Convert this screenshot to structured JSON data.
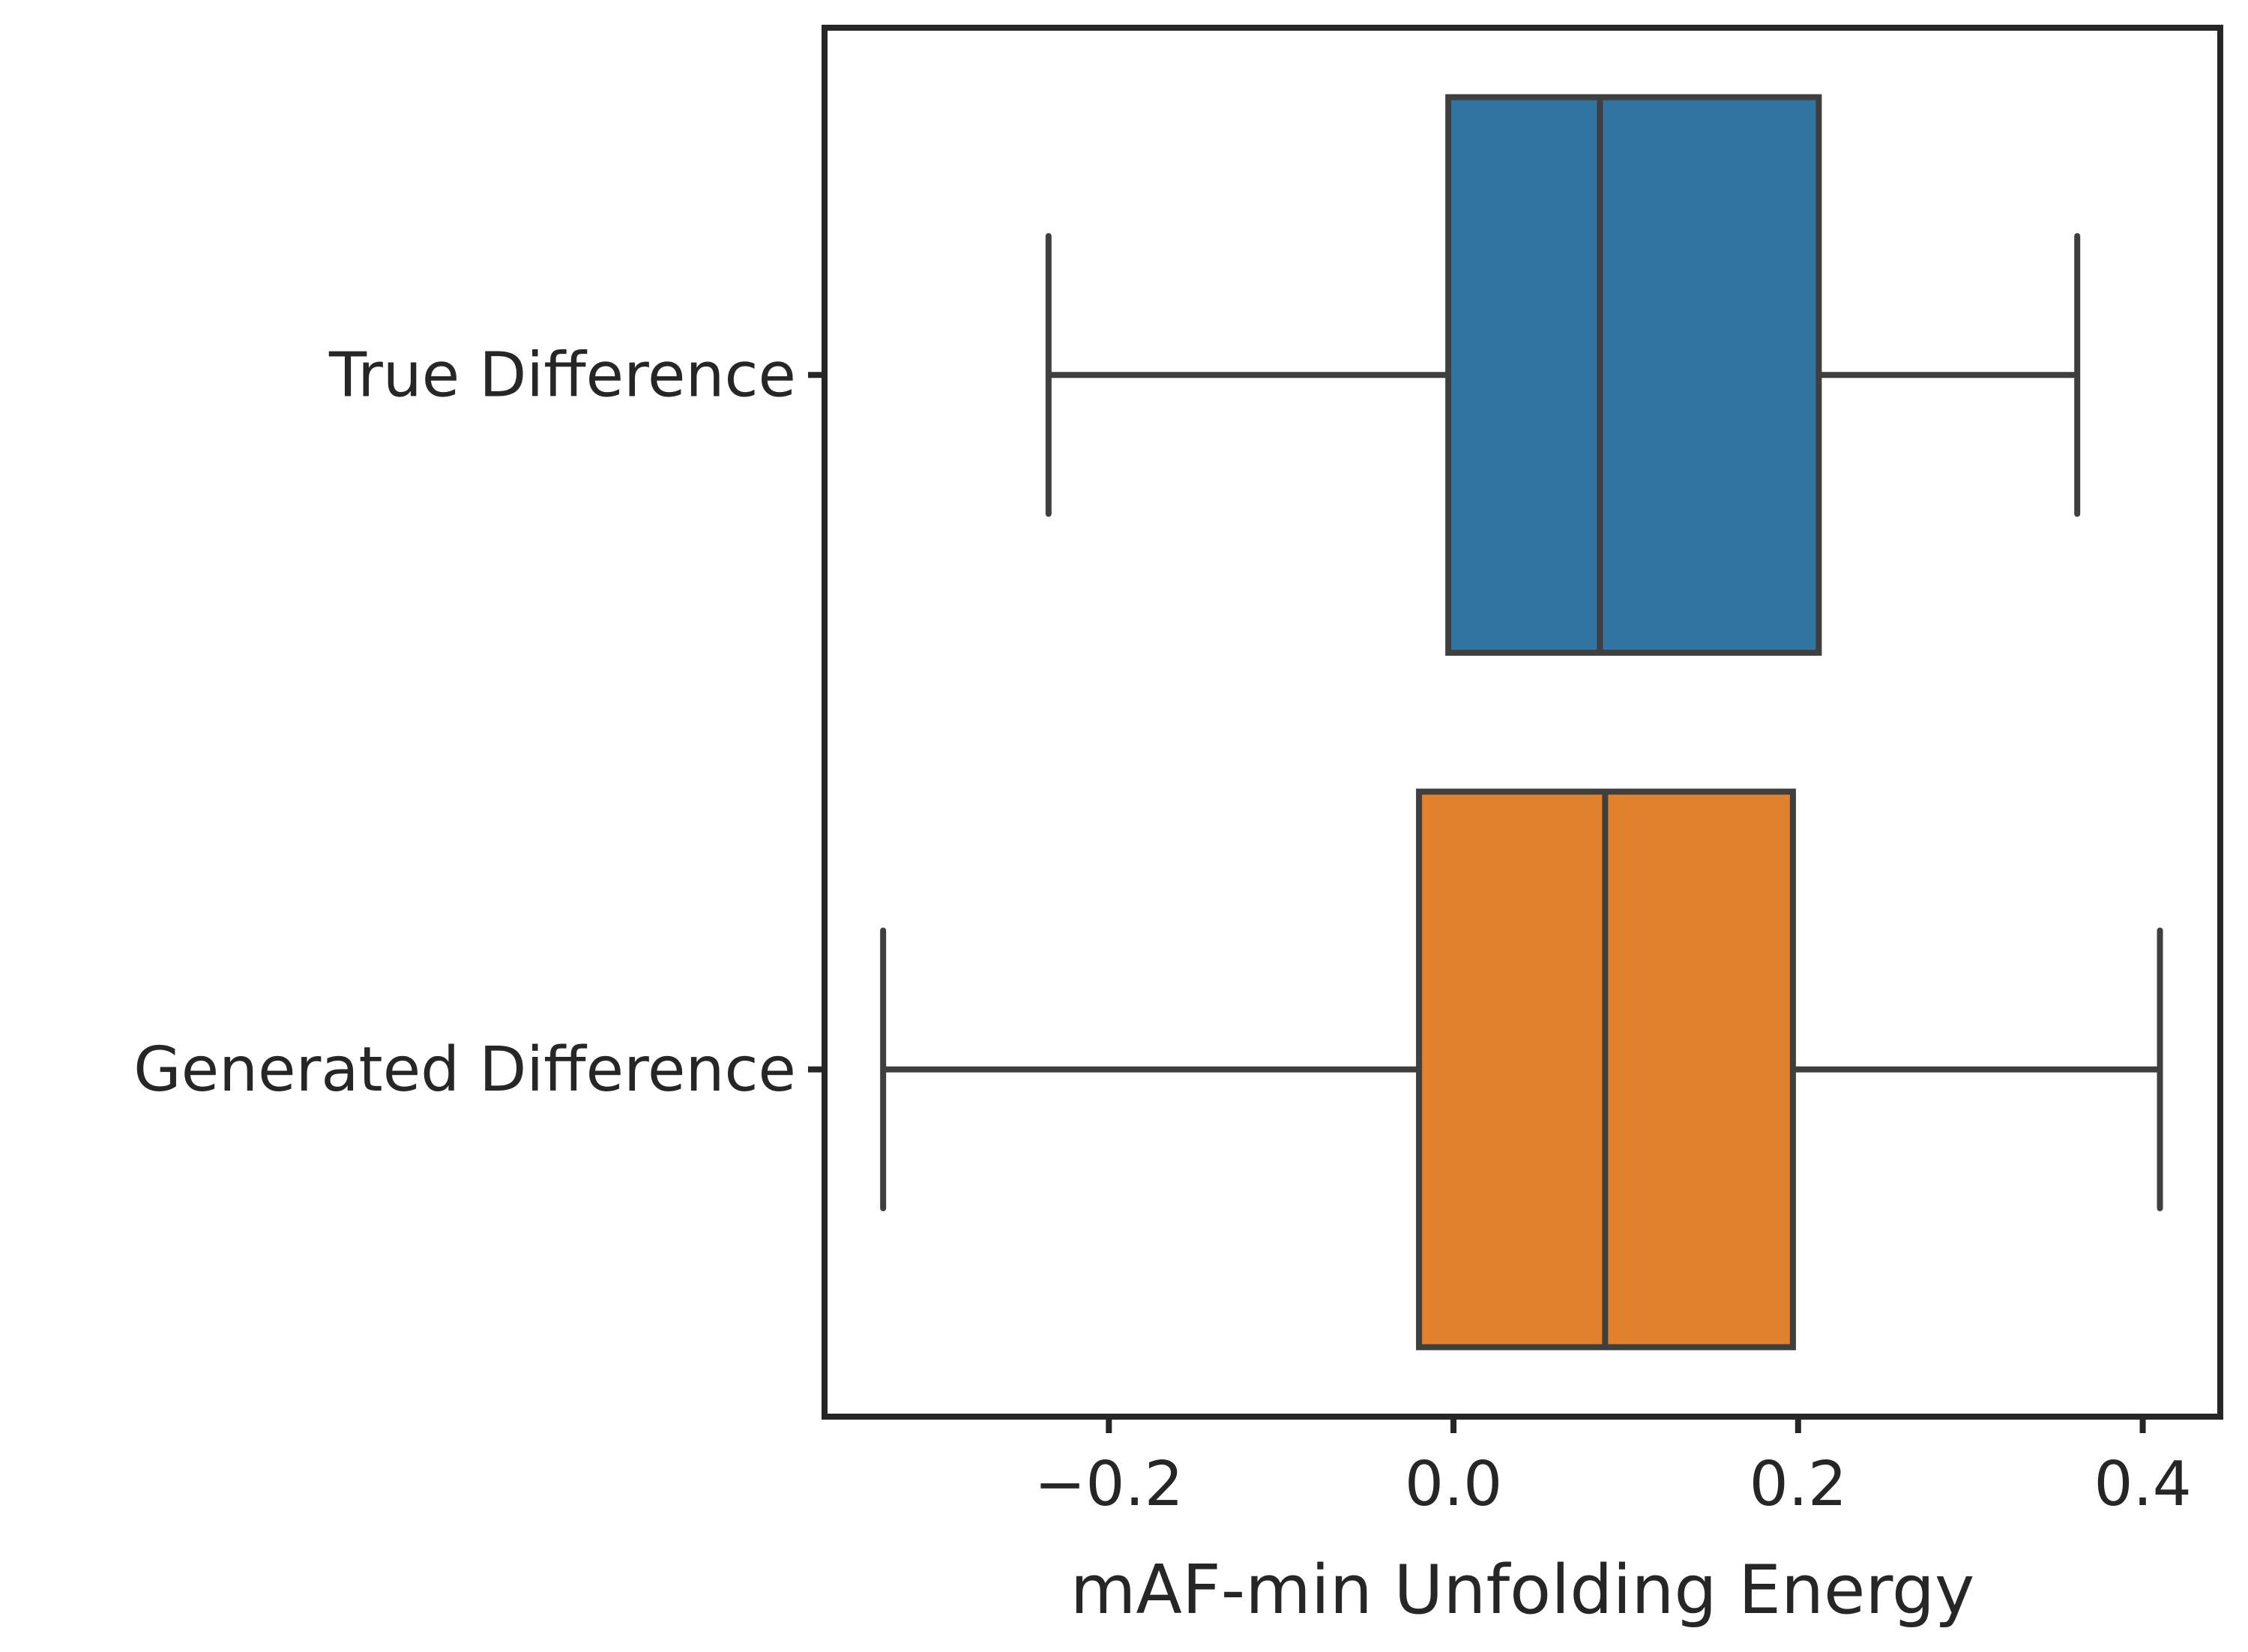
{
  "chart_data": {
    "type": "box",
    "orientation": "horizontal",
    "xlabel": "mAF-min Unfolding Energy",
    "ylabel": "",
    "xlim": [
      -0.365,
      0.445
    ],
    "xticks": [
      -0.2,
      0.0,
      0.2,
      0.4
    ],
    "xtick_labels": [
      "−0.2",
      "0.0",
      "0.2",
      "0.4"
    ],
    "grid": false,
    "categories": [
      "True Difference",
      "Generated Difference"
    ],
    "boxes": [
      {
        "label": "True Difference",
        "whisker_low": -0.235,
        "q1": -0.003,
        "median": 0.085,
        "q3": 0.212,
        "whisker_high": 0.362,
        "color": "#3274a1"
      },
      {
        "label": "Generated Difference",
        "whisker_low": -0.331,
        "q1": -0.02,
        "median": 0.088,
        "q3": 0.197,
        "whisker_high": 0.41,
        "color": "#e1812c"
      }
    ],
    "edge_color": "#3f3f3f",
    "axis_color": "#262626"
  }
}
